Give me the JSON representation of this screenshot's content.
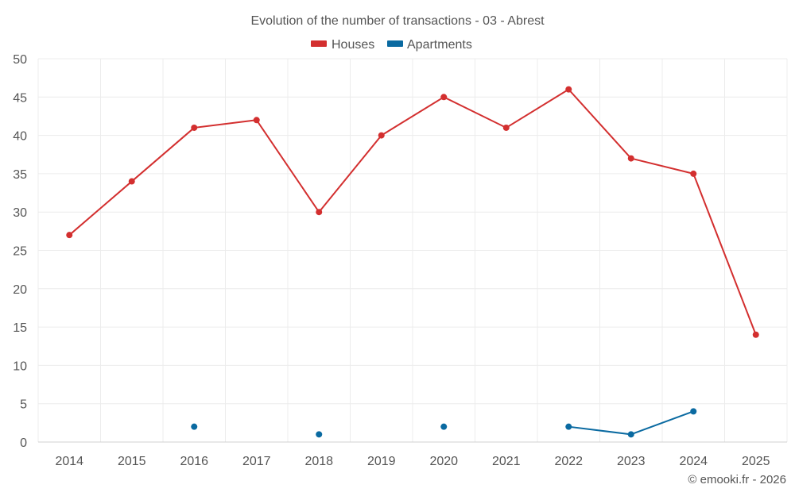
{
  "chart_data": {
    "type": "line",
    "title": "Evolution of the number of transactions - 03 - Abrest",
    "categories": [
      "2014",
      "2015",
      "2016",
      "2017",
      "2018",
      "2019",
      "2020",
      "2021",
      "2022",
      "2023",
      "2024",
      "2025"
    ],
    "ylim": [
      0,
      50
    ],
    "yticks": [
      0,
      5,
      10,
      15,
      20,
      25,
      30,
      35,
      40,
      45,
      50
    ],
    "grid": true,
    "legend_position": "top-center",
    "xlabel": "",
    "ylabel": "",
    "series": [
      {
        "name": "Houses",
        "color": "#d32f2f",
        "values": [
          27,
          34,
          41,
          42,
          30,
          40,
          45,
          41,
          46,
          37,
          35,
          14
        ]
      },
      {
        "name": "Apartments",
        "color": "#0a6aa1",
        "values": [
          null,
          null,
          2,
          null,
          1,
          null,
          2,
          null,
          2,
          1,
          4,
          null
        ]
      }
    ]
  },
  "credit": "© emooki.fr - 2026"
}
